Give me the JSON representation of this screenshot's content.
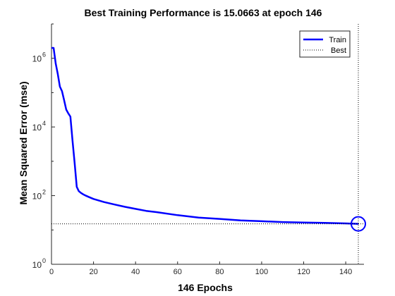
{
  "chart_data": {
    "type": "line",
    "title": "Best Training Performance is 15.0663 at epoch 146",
    "xlabel": "146 Epochs",
    "ylabel": "Mean Squared Error  (mse)",
    "xlim": [
      0,
      146
    ],
    "ylim": [
      1,
      10000000
    ],
    "yscale": "log",
    "xticks": [
      0,
      20,
      40,
      60,
      80,
      100,
      120,
      140
    ],
    "yticks": [
      {
        "value": 1,
        "base": "10",
        "exp": "0"
      },
      {
        "value": 100,
        "base": "10",
        "exp": "2"
      },
      {
        "value": 10000,
        "base": "10",
        "exp": "4"
      },
      {
        "value": 1000000,
        "base": "10",
        "exp": "6"
      }
    ],
    "grid": false,
    "legend_location": "top-right",
    "series": [
      {
        "name": "Train",
        "color": "#0000ff",
        "style": "solid",
        "x": [
          0,
          1,
          2,
          3,
          4,
          5,
          6,
          7,
          8,
          9,
          10,
          11,
          12,
          13,
          14,
          15,
          16,
          18,
          20,
          25,
          30,
          35,
          40,
          45,
          50,
          60,
          70,
          80,
          90,
          100,
          110,
          120,
          130,
          140,
          146
        ],
        "y": [
          2000000,
          2000000,
          700000,
          350000,
          150000,
          110000,
          60000,
          32000,
          25000,
          20000,
          4000,
          900,
          180,
          135,
          120,
          110,
          102,
          90,
          80,
          65,
          55,
          47,
          41,
          36,
          33,
          27,
          23,
          21,
          19,
          18,
          17,
          16.5,
          16,
          15.5,
          15.0663
        ]
      },
      {
        "name": "Best",
        "color": "#000000",
        "style": "dotted",
        "hline": 15.0663,
        "vline": 146
      }
    ],
    "best_marker": {
      "x": 146,
      "y": 15.0663,
      "color": "#0000ff"
    }
  }
}
